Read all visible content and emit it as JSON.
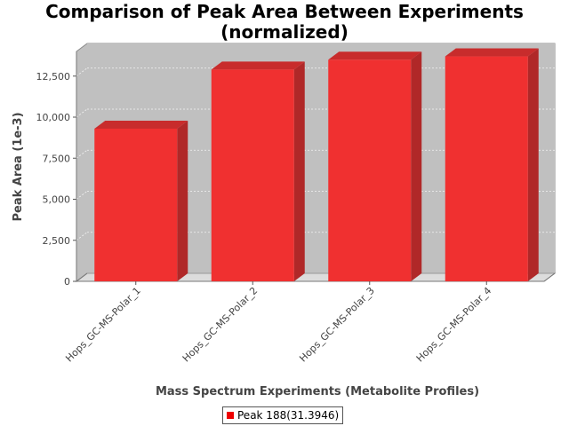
{
  "chart_data": {
    "type": "bar",
    "title_line1": "Comparison of Peak Area Between Experiments",
    "title_line2": "(normalized)",
    "xlabel": "Mass Spectrum Experiments (Metabolite Profiles)",
    "ylabel": "Peak Area (1e-3)",
    "categories": [
      "Hops_GC-MS-Polar_1",
      "Hops_GC-MS-Polar_2",
      "Hops_GC-MS-Polar_3",
      "Hops_GC-MS-Polar_4"
    ],
    "series": [
      {
        "name": "Peak 188(31.3946)",
        "values": [
          9300,
          12900,
          13500,
          13700
        ]
      }
    ],
    "ylim": [
      0,
      14000
    ],
    "yticks": [
      0,
      2500,
      5000,
      7500,
      10000,
      12500
    ],
    "ytick_labels": [
      "0",
      "2,500",
      "5,000",
      "7,500",
      "10,000",
      "12,500"
    ],
    "grid": true,
    "legend_position": "bottom-center",
    "colors": {
      "bar_front": "#f03030",
      "bar_side": "#b02828",
      "bar_top": "#c82c2c",
      "plot_bg": "#c0c0c0",
      "floor": "#dcdcdc"
    }
  }
}
